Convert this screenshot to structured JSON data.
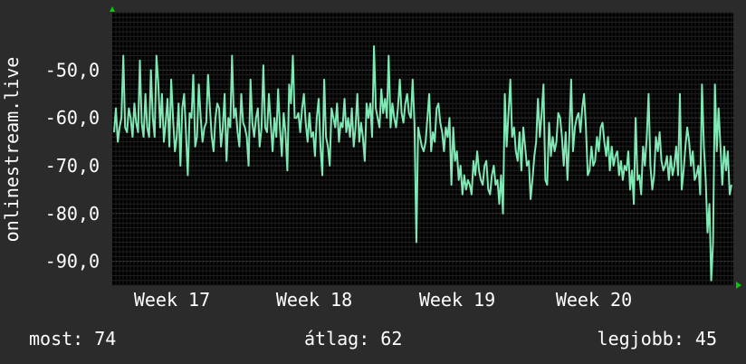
{
  "chart_data": {
    "type": "line",
    "ylabel": "onlinestream.live",
    "y_ticks": [
      -50,
      -60,
      -70,
      -80,
      -90
    ],
    "y_tick_labels": [
      "-50,0",
      "-60,0",
      "-70,0",
      "-80,0",
      "-90,0"
    ],
    "ylim": [
      -95,
      -38
    ],
    "x_ticks": [
      "Week 17",
      "Week 18",
      "Week 19",
      "Week 20"
    ],
    "grid": true,
    "colors": {
      "background": "#2b2b2b",
      "plot": "#000000",
      "grid": "#3a3a3a",
      "line": "#7fe8b4",
      "arrow": "#00cc00"
    },
    "series": [
      {
        "values": [
          -63,
          -58,
          -65,
          -62,
          -60,
          -47,
          -62,
          -63,
          -58,
          -60,
          -64,
          -57,
          -61,
          -63,
          -48,
          -61,
          -64,
          -55,
          -62,
          -64,
          -50,
          -60,
          -64,
          -47,
          -53,
          -62,
          -55,
          -65,
          -61,
          -56,
          -66,
          -52,
          -60,
          -67,
          -64,
          -57,
          -70,
          -58,
          -55,
          -63,
          -72,
          -59,
          -60,
          -51,
          -66,
          -64,
          -53,
          -60,
          -65,
          -62,
          -61,
          -51,
          -58,
          -64,
          -67,
          -60,
          -57,
          -58,
          -66,
          -62,
          -55,
          -69,
          -60,
          -62,
          -47,
          -60,
          -58,
          -63,
          -66,
          -55,
          -61,
          -62,
          -64,
          -70,
          -52,
          -61,
          -64,
          -60,
          -58,
          -66,
          -62,
          -49,
          -62,
          -63,
          -55,
          -61,
          -67,
          -60,
          -64,
          -54,
          -62,
          -68,
          -59,
          -63,
          -71,
          -53,
          -57,
          -47,
          -60,
          -60,
          -59,
          -63,
          -58,
          -55,
          -61,
          -65,
          -59,
          -64,
          -63,
          -68,
          -60,
          -56,
          -66,
          -72,
          -52,
          -64,
          -66,
          -70,
          -58,
          -60,
          -62,
          -57,
          -65,
          -61,
          -62,
          -56,
          -63,
          -60,
          -64,
          -58,
          -66,
          -62,
          -55,
          -65,
          -61,
          -64,
          -69,
          -57,
          -60,
          -57,
          -64,
          -45,
          -58,
          -60,
          -62,
          -54,
          -59,
          -56,
          -60,
          -47,
          -62,
          -57,
          -60,
          -62,
          -58,
          -52,
          -59,
          -61,
          -57,
          -55,
          -59,
          -60,
          -52,
          -61,
          -86,
          -62,
          -64,
          -66,
          -67,
          -65,
          -60,
          -55,
          -67,
          -63,
          -65,
          -58,
          -57,
          -61,
          -63,
          -67,
          -62,
          -64,
          -60,
          -74,
          -62,
          -69,
          -67,
          -73,
          -70,
          -76,
          -72,
          -75,
          -73,
          -74,
          -76,
          -69,
          -72,
          -67,
          -71,
          -73,
          -74,
          -70,
          -69,
          -75,
          -76,
          -72,
          -70,
          -74,
          -73,
          -78,
          -72,
          -80,
          -55,
          -66,
          -59,
          -52,
          -64,
          -62,
          -67,
          -69,
          -63,
          -71,
          -62,
          -66,
          -70,
          -69,
          -77,
          -73,
          -68,
          -65,
          -56,
          -64,
          -59,
          -53,
          -73,
          -74,
          -61,
          -68,
          -64,
          -67,
          -65,
          -59,
          -60,
          -64,
          -70,
          -63,
          -73,
          -64,
          -52,
          -67,
          -62,
          -60,
          -59,
          -63,
          -58,
          -55,
          -62,
          -72,
          -71,
          -66,
          -70,
          -69,
          -64,
          -67,
          -62,
          -61,
          -65,
          -68,
          -64,
          -71,
          -66,
          -70,
          -68,
          -67,
          -72,
          -69,
          -73,
          -70,
          -71,
          -67,
          -75,
          -71,
          -78,
          -60,
          -73,
          -72,
          -76,
          -66,
          -70,
          -64,
          -55,
          -70,
          -75,
          -72,
          -64,
          -67,
          -63,
          -69,
          -71,
          -70,
          -68,
          -73,
          -68,
          -72,
          -70,
          -66,
          -72,
          -55,
          -75,
          -71,
          -66,
          -62,
          -65,
          -70,
          -67,
          -73,
          -72,
          -70,
          -76,
          -53,
          -66,
          -73,
          -84,
          -78,
          -94,
          -86,
          -53,
          -67,
          -58,
          -66,
          -74,
          -66,
          -71,
          -67,
          -76,
          -74
        ]
      }
    ]
  },
  "stats": {
    "current": "most: 74",
    "average": "átlag: 62",
    "best": "legjobb: 45"
  }
}
